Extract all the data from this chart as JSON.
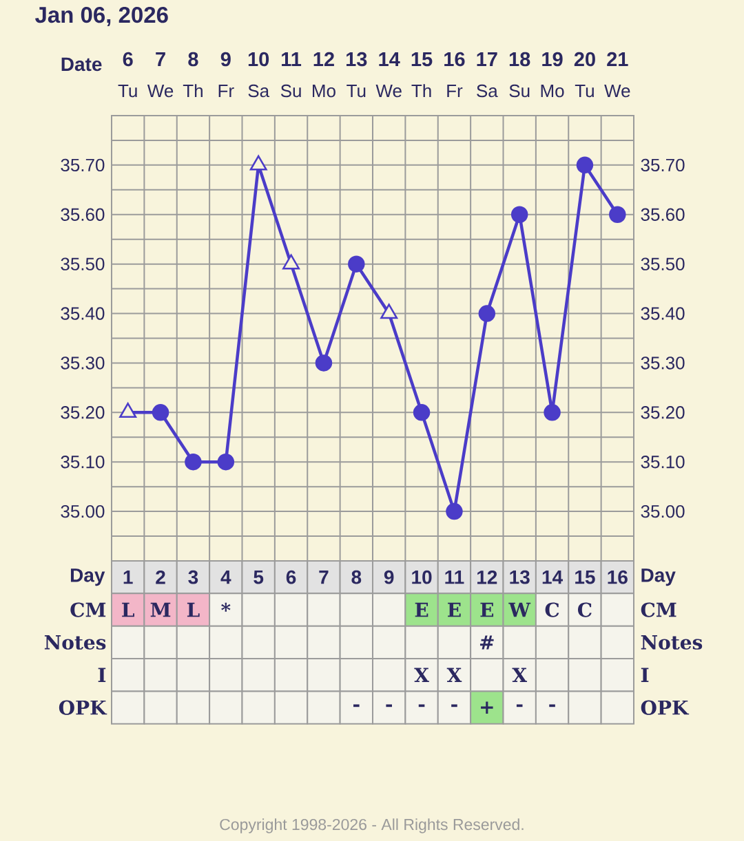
{
  "chart_data": [
    {
      "type": "line",
      "title": "Jan 06, 2026",
      "xlabel": "Date",
      "categories": [
        "6",
        "7",
        "8",
        "9",
        "10",
        "11",
        "12",
        "13",
        "14",
        "15",
        "16",
        "17",
        "18",
        "19",
        "20",
        "21"
      ],
      "series": [
        {
          "color": "#4b3cc8",
          "marker": "none",
          "values": [
            35.2,
            35.2,
            35.1,
            35.1,
            35.7,
            35.5,
            35.3,
            35.5,
            35.4,
            35.2,
            35.0,
            35.4,
            35.6,
            35.2,
            35.7,
            35.6
          ]
        },
        {
          "type": "scatter",
          "color": "#4b3cc8",
          "marker": "circle",
          "values": [
            null,
            35.2,
            35.1,
            35.1,
            null,
            null,
            35.3,
            35.5,
            null,
            35.2,
            35.0,
            35.4,
            35.6,
            35.2,
            35.7,
            35.6
          ]
        },
        {
          "type": "scatter",
          "color": "#4b3cc8",
          "marker": "triangle",
          "values": [
            35.2,
            null,
            null,
            null,
            35.7,
            35.5,
            null,
            null,
            35.4,
            null,
            null,
            null,
            null,
            null,
            null,
            null
          ]
        }
      ],
      "ylim": [
        34.9,
        35.8
      ],
      "yticks": [
        {
          "value": 34.95,
          "label": null
        },
        {
          "value": 35.0,
          "label": "35.00"
        },
        {
          "value": 35.05,
          "label": null
        },
        {
          "value": 35.1,
          "label": "35.10"
        },
        {
          "value": 35.15,
          "label": null
        },
        {
          "value": 35.2,
          "label": "35.20"
        },
        {
          "value": 35.25,
          "label": null
        },
        {
          "value": 35.3,
          "label": "35.30"
        },
        {
          "value": 35.35,
          "label": null
        },
        {
          "value": 35.4,
          "label": "35.40"
        },
        {
          "value": 35.45,
          "label": null
        },
        {
          "value": 35.5,
          "label": "35.50"
        },
        {
          "value": 35.55,
          "label": null
        },
        {
          "value": 35.6,
          "label": "35.60"
        },
        {
          "value": 35.65,
          "label": null
        },
        {
          "value": 35.7,
          "label": "35.70"
        },
        {
          "value": 35.75,
          "label": null
        }
      ],
      "y2lim": [
        34.9,
        35.8
      ],
      "y2ticks": [
        {
          "value": 35.0,
          "label": "35.00"
        },
        {
          "value": 35.1,
          "label": "35.10"
        },
        {
          "value": 35.2,
          "label": "35.20"
        },
        {
          "value": 35.3,
          "label": "35.30"
        },
        {
          "value": 35.4,
          "label": "35.40"
        },
        {
          "value": 35.5,
          "label": "35.50"
        },
        {
          "value": 35.6,
          "label": "35.60"
        },
        {
          "value": 35.7,
          "label": "35.70"
        }
      ],
      "grid": true,
      "annotations": [
        "Tu",
        "We",
        "Th",
        "Fr",
        "Sa",
        "Su",
        "Mo",
        "Tu",
        "We",
        "Th",
        "Fr",
        "Sa",
        "Su",
        "Mo",
        "Tu",
        "We",
        "Copyright 1998-2026 - All Rights Reserved."
      ]
    },
    {
      "type": "heatmap",
      "xlabel": "Day",
      "categories": [
        "1",
        "2",
        "3",
        "4",
        "5",
        "6",
        "7",
        "8",
        "9",
        "10",
        "11",
        "12",
        "13",
        "14",
        "15",
        "16"
      ],
      "y_categories": [
        "CM",
        "Notes",
        "I",
        "OPK"
      ],
      "y2_categories": [
        "CM",
        "Notes",
        "I",
        "OPK"
      ],
      "cells": [
        [
          null,
          null,
          null,
          null,
          null,
          null,
          null,
          null,
          null,
          null,
          null,
          null,
          null,
          null,
          null,
          null
        ],
        [
          null,
          null,
          null,
          null,
          null,
          null,
          null,
          null,
          null,
          null,
          null,
          null,
          null,
          null,
          null,
          null
        ],
        [
          null,
          null,
          null,
          null,
          null,
          null,
          null,
          null,
          null,
          null,
          null,
          null,
          null,
          null,
          null,
          null
        ],
        [
          null,
          null,
          null,
          null,
          null,
          null,
          null,
          null,
          null,
          null,
          null,
          null,
          null,
          null,
          null,
          null
        ]
      ],
      "cell_labels": [
        [
          "L",
          "M",
          "L",
          "*",
          null,
          null,
          null,
          null,
          null,
          "E",
          "E",
          "E",
          "W",
          "C",
          "C",
          null
        ],
        [
          null,
          null,
          null,
          null,
          null,
          null,
          null,
          null,
          null,
          null,
          null,
          "#",
          null,
          null,
          null,
          null
        ],
        [
          null,
          null,
          null,
          null,
          null,
          null,
          null,
          null,
          null,
          "X",
          "X",
          null,
          "X",
          null,
          null,
          null
        ],
        [
          null,
          null,
          null,
          null,
          null,
          null,
          null,
          "-",
          "-",
          "-",
          "-",
          "+",
          "-",
          "-",
          null,
          null
        ]
      ],
      "colors": [
        [
          "#f3b6c8",
          "#f3b6c8",
          "#f3b6c8",
          null,
          null,
          null,
          null,
          null,
          null,
          "#9de38c",
          "#9de38c",
          "#9de38c",
          "#9de38c",
          null,
          null,
          null
        ],
        [
          null,
          null,
          null,
          null,
          null,
          null,
          null,
          null,
          null,
          null,
          null,
          null,
          null,
          null,
          null,
          null
        ],
        [
          null,
          null,
          null,
          null,
          null,
          null,
          null,
          null,
          null,
          null,
          null,
          null,
          null,
          null,
          null,
          null
        ],
        [
          null,
          null,
          null,
          null,
          null,
          null,
          null,
          null,
          null,
          null,
          null,
          "#9de38c",
          null,
          null,
          null,
          null
        ]
      ]
    }
  ]
}
